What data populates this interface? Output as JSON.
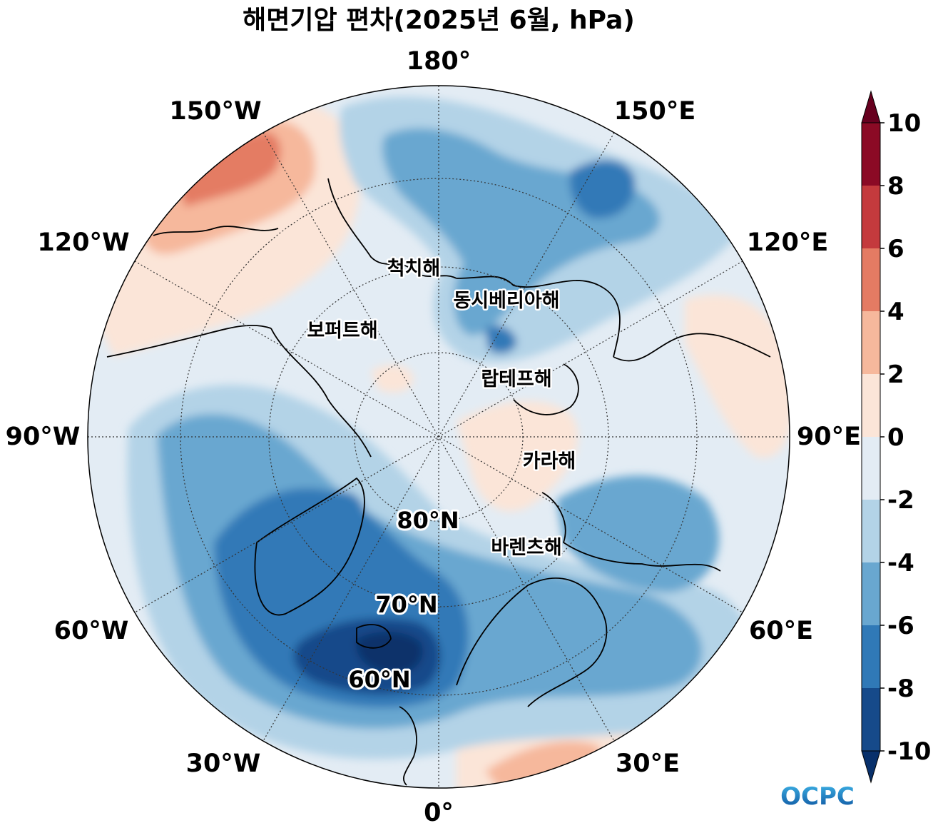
{
  "title": "해면기압 편차(2025년 6월, hPa)",
  "longitude_labels": [
    {
      "id": "lon-180",
      "text": "180°"
    },
    {
      "id": "lon-150w",
      "text": "150°W"
    },
    {
      "id": "lon-150e",
      "text": "150°E"
    },
    {
      "id": "lon-120w",
      "text": "120°W"
    },
    {
      "id": "lon-120e",
      "text": "120°E"
    },
    {
      "id": "lon-90w",
      "text": "90°W"
    },
    {
      "id": "lon-90e",
      "text": "90°E"
    },
    {
      "id": "lon-60w",
      "text": "60°W"
    },
    {
      "id": "lon-60e",
      "text": "60°E"
    },
    {
      "id": "lon-30w",
      "text": "30°W"
    },
    {
      "id": "lon-30e",
      "text": "30°E"
    },
    {
      "id": "lon-0",
      "text": "0°"
    }
  ],
  "latitude_labels": [
    "80°N",
    "70°N",
    "60°N"
  ],
  "seas": [
    "척치해",
    "동시베리아해",
    "보퍼트해",
    "랍테프해",
    "카라해",
    "바렌츠해"
  ],
  "colorbar": {
    "ticks": [
      "10",
      "8",
      "6",
      "4",
      "2",
      "0",
      "-2",
      "-4",
      "-6",
      "-8",
      "-10"
    ],
    "colors": [
      "#67001f",
      "#8b0a25",
      "#c43a3d",
      "#e47b63",
      "#f6b89c",
      "#fbe5d8",
      "#e3ecf4",
      "#b3d3e7",
      "#69a7d0",
      "#3079b7",
      "#164a8a",
      "#08306b"
    ],
    "extend": "both"
  },
  "logo": "OCPC"
}
